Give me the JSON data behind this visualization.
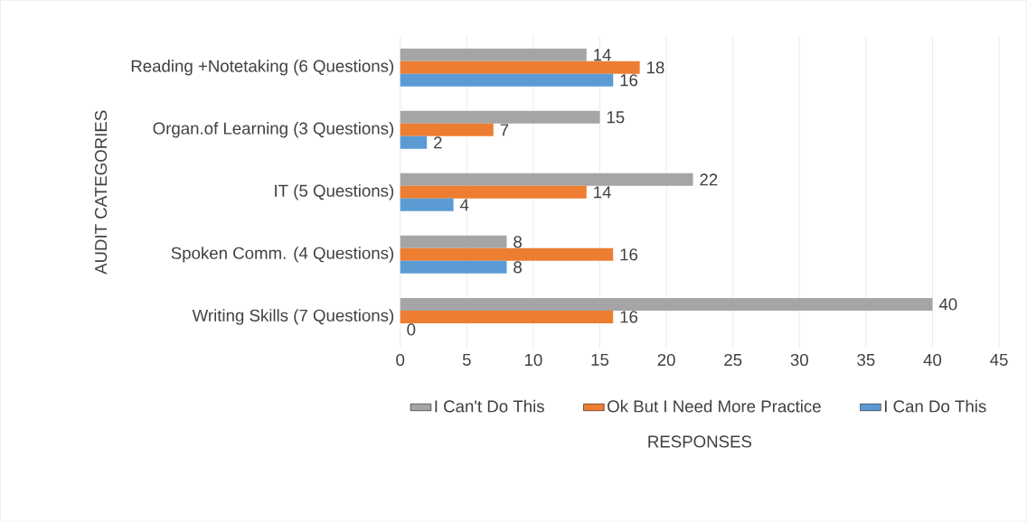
{
  "chart_data": {
    "type": "bar",
    "orientation": "horizontal",
    "xlabel": "RESPONSES",
    "ylabel": "AUDIT CATEGORIES",
    "categories": [
      "Reading +Notetaking (6 Questions)",
      "Organ.of Learning (3 Questions)",
      "IT (5 Questions)",
      "Spoken Comm. (4 Questions)",
      "Writing Skills (7 Questions)"
    ],
    "series": [
      {
        "name": "I Can't Do This",
        "color": "#a5a5a5",
        "values": [
          14,
          15,
          22,
          8,
          40
        ]
      },
      {
        "name": "Ok But I Need More Practice",
        "color": "#ed7d31",
        "values": [
          18,
          7,
          14,
          16,
          16
        ]
      },
      {
        "name": "I Can Do This",
        "color": "#5b9bd5",
        "values": [
          16,
          2,
          4,
          8,
          0
        ]
      }
    ],
    "xlim": [
      0,
      45
    ],
    "xticks": [
      0,
      5,
      10,
      15,
      20,
      25,
      30,
      35,
      40,
      45
    ],
    "grid": "x",
    "legend": "bottom",
    "data_labels": true
  }
}
